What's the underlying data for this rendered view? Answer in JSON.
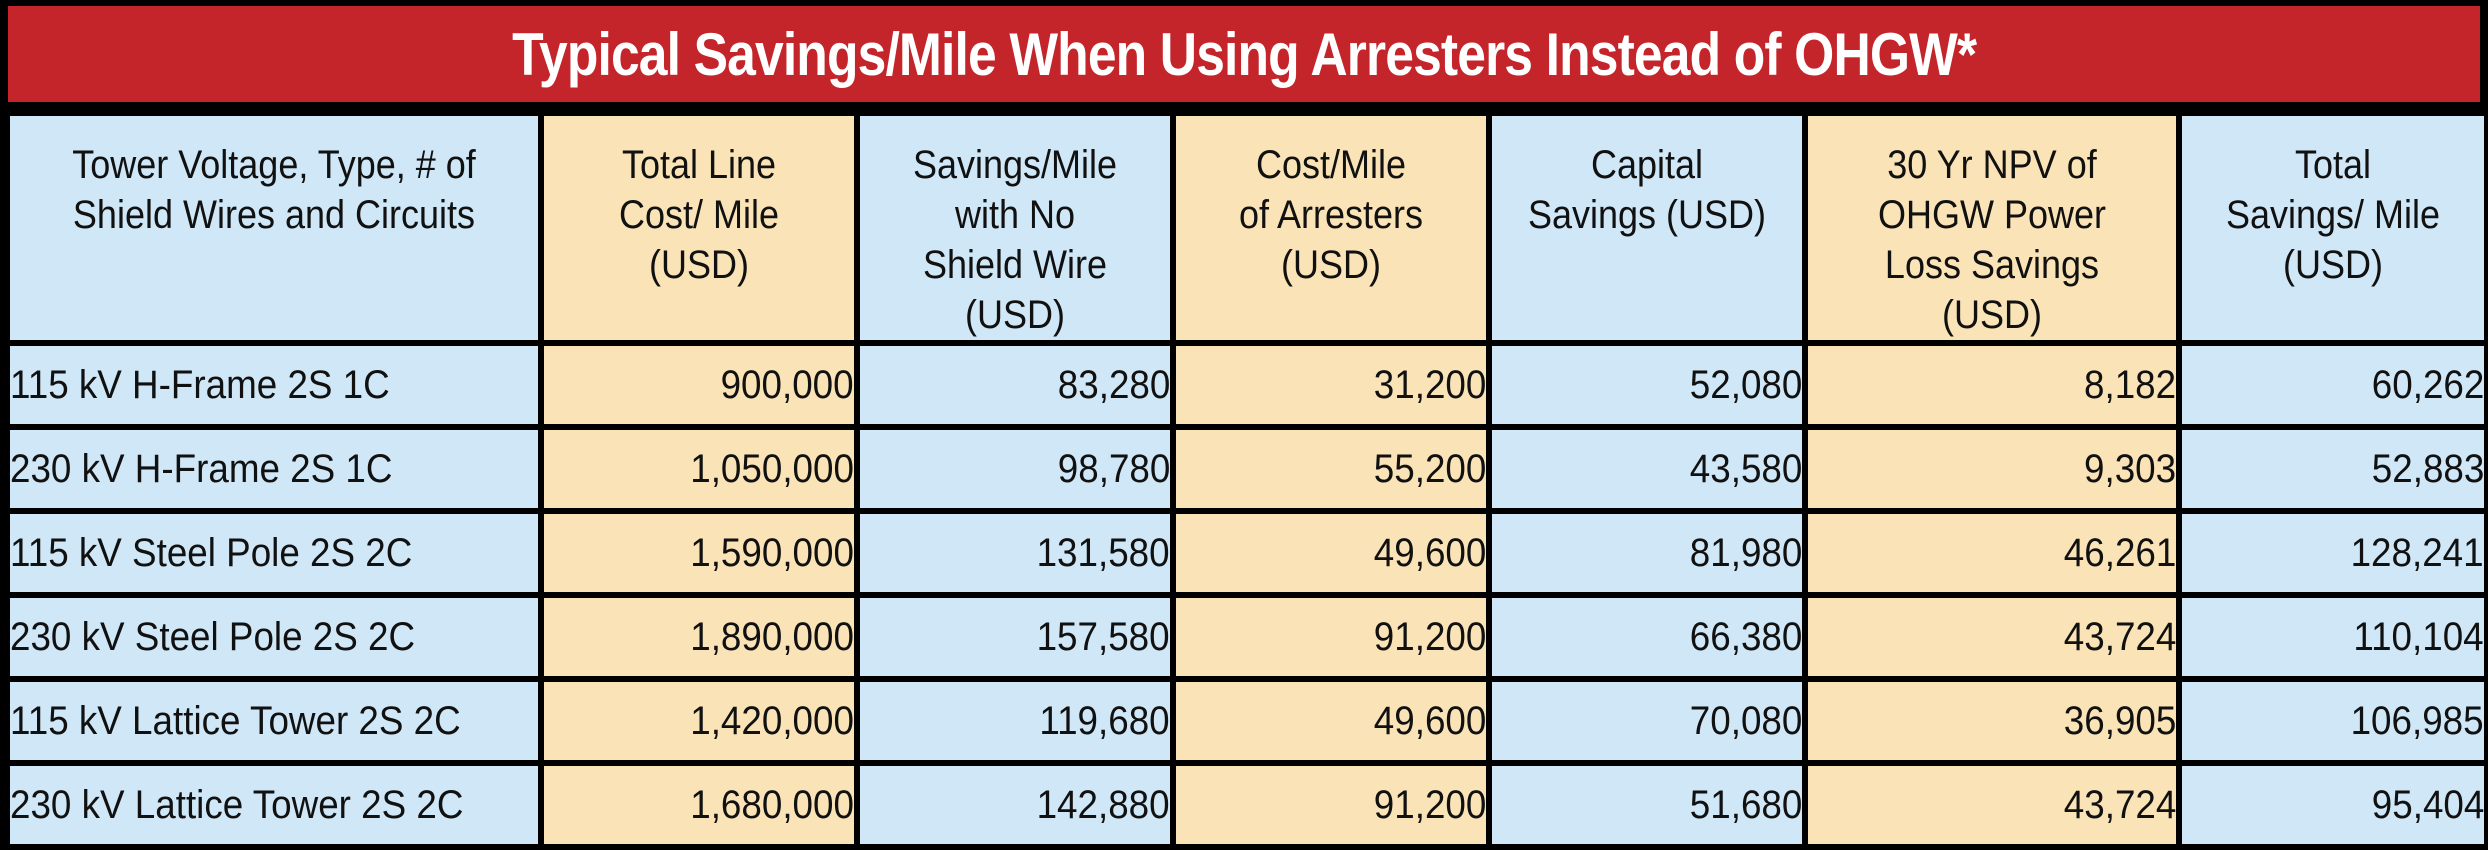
{
  "title": "Typical Savings/Mile When Using Arresters Instead of OHGW*",
  "colors": {
    "title_background": "#c3252b",
    "title_text": "#ffffff",
    "blue_column": "#cfe7f6",
    "tan_column": "#fae4b7",
    "grid_lines": "#000000"
  },
  "table": {
    "headers": [
      "Tower Voltage, Type, # of Shield Wires and Circuits",
      "Total Line Cost/ Mile (USD)",
      "Savings/Mile with No Shield Wire (USD)",
      "Cost/Mile of Arresters (USD)",
      "Capital Savings (USD)",
      "30 Yr NPV of OHGW Power Loss Savings (USD)",
      "Total Savings/ Mile (USD)"
    ],
    "rows": [
      [
        "115 kV H-Frame 2S 1C",
        "900,000",
        "83,280",
        "31,200",
        "52,080",
        "8,182",
        "60,262"
      ],
      [
        "230 kV H-Frame 2S 1C",
        "1,050,000",
        "98,780",
        "55,200",
        "43,580",
        "9,303",
        "52,883"
      ],
      [
        "115 kV Steel Pole 2S 2C",
        "1,590,000",
        "131,580",
        "49,600",
        "81,980",
        "46,261",
        "128,241"
      ],
      [
        "230 kV Steel Pole 2S 2C",
        "1,890,000",
        "157,580",
        "91,200",
        "66,380",
        "43,724",
        "110,104"
      ],
      [
        "115 kV Lattice Tower 2S 2C",
        "1,420,000",
        "119,680",
        "49,600",
        "70,080",
        "36,905",
        "106,985"
      ],
      [
        "230 kV Lattice Tower 2S 2C",
        "1,680,000",
        "142,880",
        "91,200",
        "51,680",
        "43,724",
        "95,404"
      ]
    ]
  }
}
